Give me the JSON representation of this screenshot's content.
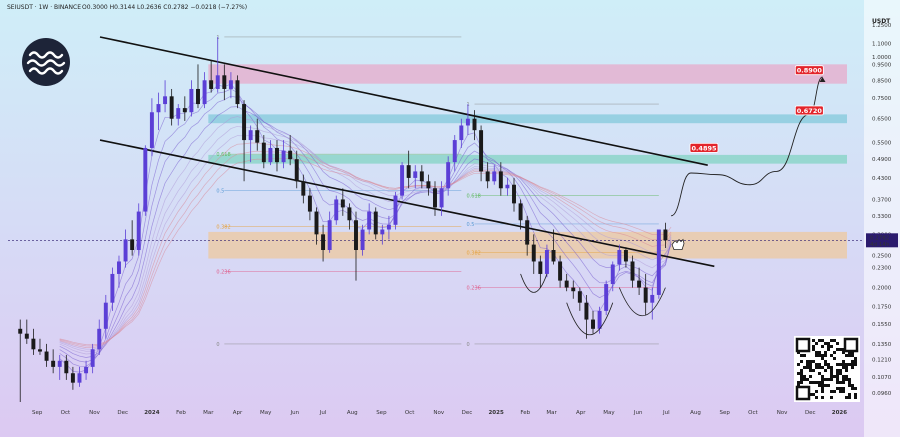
{
  "header": {
    "symbol_line": "SEIUSDT · 1W · BINANCE",
    "ohlc": "O0.3000  H0.3144  L0.2636  C0.2782  −0.0218 (−7.27%)"
  },
  "colors": {
    "up": "#5b3fd6",
    "down": "#1a1a1a",
    "resistance_zone": "#e9a6c8",
    "cyan_zone": "#7ec8d8",
    "green_zone": "#7ed3c0",
    "support_zone": "#f0c898",
    "target_label": "#e3242b",
    "last_price": "#2b1b6e"
  },
  "price_axis": {
    "currency": "USDT",
    "ticks": [
      "1.2500",
      "1.1000",
      "1.0000",
      "0.9500",
      "0.8500",
      "0.7500",
      "0.6500",
      "0.5500",
      "0.4900",
      "0.4300",
      "0.3700",
      "0.3300",
      "0.2900",
      "0.2500",
      "0.2300",
      "0.2000",
      "0.1750",
      "0.1550",
      "0.1350",
      "0.1210",
      "0.1070",
      "0.0960"
    ],
    "last_price": "0.2782",
    "countdown": "4d 14h"
  },
  "time_axis": {
    "labels": [
      "Sep",
      "Oct",
      "Nov",
      "Dec",
      "2024",
      "Feb",
      "Mar",
      "Apr",
      "May",
      "Jun",
      "Jul",
      "Aug",
      "Sep",
      "Oct",
      "Nov",
      "Dec",
      "2025",
      "Feb",
      "Mar",
      "Apr",
      "May",
      "Jun",
      "Jul",
      "Aug",
      "Sep",
      "Oct",
      "Nov",
      "Dec",
      "2026"
    ]
  },
  "fib_labels": {
    "left": [
      "1",
      "0.618",
      "0.5",
      "0.382",
      "0.236",
      "0"
    ],
    "right": [
      "1",
      "0.618",
      "0.5",
      "0.382",
      "0.236",
      "0"
    ]
  },
  "targets": [
    "0.4895",
    "0.6720",
    "0.8900"
  ],
  "chart_data": {
    "type": "candlestick",
    "symbol": "SEIUSDT",
    "exchange": "BINANCE",
    "interval": "1W",
    "y_scale": "log",
    "ylim": [
      0.09,
      1.35
    ],
    "last": {
      "open": 0.3,
      "high": 0.3144,
      "low": 0.2636,
      "close": 0.2782,
      "change": -0.0218,
      "change_pct": -7.27
    },
    "targets": [
      0.4895,
      0.672,
      0.89
    ],
    "zones": [
      {
        "name": "resistance",
        "low": 0.83,
        "high": 0.95
      },
      {
        "name": "cyan",
        "low": 0.63,
        "high": 0.67
      },
      {
        "name": "green",
        "low": 0.475,
        "high": 0.505
      },
      {
        "name": "support",
        "low": 0.245,
        "high": 0.295
      }
    ],
    "candles": [
      {
        "date": "2023-08-14",
        "o": 0.15,
        "h": 0.16,
        "l": 0.09,
        "c": 0.145
      },
      {
        "date": "2023-08-21",
        "o": 0.145,
        "h": 0.16,
        "l": 0.135,
        "c": 0.14
      },
      {
        "date": "2023-08-28",
        "o": 0.14,
        "h": 0.15,
        "l": 0.125,
        "c": 0.13
      },
      {
        "date": "2023-09-04",
        "o": 0.13,
        "h": 0.14,
        "l": 0.125,
        "c": 0.128
      },
      {
        "date": "2023-09-11",
        "o": 0.128,
        "h": 0.135,
        "l": 0.115,
        "c": 0.12
      },
      {
        "date": "2023-09-18",
        "o": 0.12,
        "h": 0.13,
        "l": 0.11,
        "c": 0.115
      },
      {
        "date": "2023-09-25",
        "o": 0.115,
        "h": 0.125,
        "l": 0.105,
        "c": 0.12
      },
      {
        "date": "2023-10-02",
        "o": 0.12,
        "h": 0.125,
        "l": 0.105,
        "c": 0.11
      },
      {
        "date": "2023-10-09",
        "o": 0.11,
        "h": 0.115,
        "l": 0.098,
        "c": 0.103
      },
      {
        "date": "2023-10-16",
        "o": 0.103,
        "h": 0.115,
        "l": 0.1,
        "c": 0.11
      },
      {
        "date": "2023-10-23",
        "o": 0.11,
        "h": 0.12,
        "l": 0.105,
        "c": 0.115
      },
      {
        "date": "2023-10-30",
        "o": 0.115,
        "h": 0.135,
        "l": 0.11,
        "c": 0.13
      },
      {
        "date": "2023-11-06",
        "o": 0.13,
        "h": 0.16,
        "l": 0.125,
        "c": 0.15
      },
      {
        "date": "2023-11-13",
        "o": 0.15,
        "h": 0.19,
        "l": 0.14,
        "c": 0.18
      },
      {
        "date": "2023-11-20",
        "o": 0.18,
        "h": 0.23,
        "l": 0.17,
        "c": 0.22
      },
      {
        "date": "2023-11-27",
        "o": 0.22,
        "h": 0.25,
        "l": 0.2,
        "c": 0.24
      },
      {
        "date": "2023-12-04",
        "o": 0.24,
        "h": 0.3,
        "l": 0.23,
        "c": 0.28
      },
      {
        "date": "2023-12-11",
        "o": 0.28,
        "h": 0.32,
        "l": 0.25,
        "c": 0.26
      },
      {
        "date": "2023-12-18",
        "o": 0.26,
        "h": 0.36,
        "l": 0.25,
        "c": 0.34
      },
      {
        "date": "2023-12-25",
        "o": 0.34,
        "h": 0.54,
        "l": 0.33,
        "c": 0.53
      },
      {
        "date": "2024-01-01",
        "o": 0.53,
        "h": 0.75,
        "l": 0.5,
        "c": 0.68
      },
      {
        "date": "2024-01-08",
        "o": 0.68,
        "h": 0.78,
        "l": 0.6,
        "c": 0.72
      },
      {
        "date": "2024-01-15",
        "o": 0.72,
        "h": 0.85,
        "l": 0.68,
        "c": 0.76
      },
      {
        "date": "2024-01-22",
        "o": 0.76,
        "h": 0.8,
        "l": 0.62,
        "c": 0.65
      },
      {
        "date": "2024-01-29",
        "o": 0.65,
        "h": 0.72,
        "l": 0.62,
        "c": 0.7
      },
      {
        "date": "2024-02-05",
        "o": 0.7,
        "h": 0.76,
        "l": 0.64,
        "c": 0.68
      },
      {
        "date": "2024-02-12",
        "o": 0.68,
        "h": 0.85,
        "l": 0.66,
        "c": 0.8
      },
      {
        "date": "2024-02-19",
        "o": 0.8,
        "h": 0.95,
        "l": 0.7,
        "c": 0.72
      },
      {
        "date": "2024-02-26",
        "o": 0.72,
        "h": 0.9,
        "l": 0.7,
        "c": 0.85
      },
      {
        "date": "2024-03-04",
        "o": 0.85,
        "h": 0.98,
        "l": 0.78,
        "c": 0.8
      },
      {
        "date": "2024-03-11",
        "o": 0.8,
        "h": 1.15,
        "l": 0.78,
        "c": 0.88
      },
      {
        "date": "2024-03-18",
        "o": 0.88,
        "h": 0.95,
        "l": 0.74,
        "c": 0.8
      },
      {
        "date": "2024-03-25",
        "o": 0.8,
        "h": 0.9,
        "l": 0.75,
        "c": 0.85
      },
      {
        "date": "2024-04-01",
        "o": 0.85,
        "h": 0.88,
        "l": 0.7,
        "c": 0.72
      },
      {
        "date": "2024-04-08",
        "o": 0.72,
        "h": 0.74,
        "l": 0.42,
        "c": 0.56
      },
      {
        "date": "2024-04-15",
        "o": 0.56,
        "h": 0.62,
        "l": 0.48,
        "c": 0.6
      },
      {
        "date": "2024-04-22",
        "o": 0.6,
        "h": 0.65,
        "l": 0.52,
        "c": 0.55
      },
      {
        "date": "2024-04-29",
        "o": 0.55,
        "h": 0.58,
        "l": 0.46,
        "c": 0.48
      },
      {
        "date": "2024-05-06",
        "o": 0.48,
        "h": 0.56,
        "l": 0.47,
        "c": 0.53
      },
      {
        "date": "2024-05-13",
        "o": 0.53,
        "h": 0.56,
        "l": 0.45,
        "c": 0.48
      },
      {
        "date": "2024-05-20",
        "o": 0.48,
        "h": 0.56,
        "l": 0.46,
        "c": 0.52
      },
      {
        "date": "2024-05-27",
        "o": 0.52,
        "h": 0.58,
        "l": 0.47,
        "c": 0.49
      },
      {
        "date": "2024-06-03",
        "o": 0.49,
        "h": 0.52,
        "l": 0.4,
        "c": 0.42
      },
      {
        "date": "2024-06-10",
        "o": 0.42,
        "h": 0.44,
        "l": 0.36,
        "c": 0.38
      },
      {
        "date": "2024-06-17",
        "o": 0.38,
        "h": 0.4,
        "l": 0.32,
        "c": 0.34
      },
      {
        "date": "2024-06-24",
        "o": 0.34,
        "h": 0.35,
        "l": 0.27,
        "c": 0.29
      },
      {
        "date": "2024-07-01",
        "o": 0.29,
        "h": 0.31,
        "l": 0.24,
        "c": 0.26
      },
      {
        "date": "2024-07-08",
        "o": 0.26,
        "h": 0.34,
        "l": 0.255,
        "c": 0.32
      },
      {
        "date": "2024-07-15",
        "o": 0.32,
        "h": 0.38,
        "l": 0.31,
        "c": 0.37
      },
      {
        "date": "2024-07-22",
        "o": 0.37,
        "h": 0.4,
        "l": 0.33,
        "c": 0.35
      },
      {
        "date": "2024-07-29",
        "o": 0.35,
        "h": 0.36,
        "l": 0.3,
        "c": 0.32
      },
      {
        "date": "2024-08-05",
        "o": 0.32,
        "h": 0.34,
        "l": 0.21,
        "c": 0.26
      },
      {
        "date": "2024-08-12",
        "o": 0.26,
        "h": 0.31,
        "l": 0.25,
        "c": 0.3
      },
      {
        "date": "2024-08-19",
        "o": 0.3,
        "h": 0.36,
        "l": 0.29,
        "c": 0.34
      },
      {
        "date": "2024-08-26",
        "o": 0.34,
        "h": 0.35,
        "l": 0.28,
        "c": 0.29
      },
      {
        "date": "2024-09-02",
        "o": 0.29,
        "h": 0.31,
        "l": 0.27,
        "c": 0.3
      },
      {
        "date": "2024-09-09",
        "o": 0.3,
        "h": 0.33,
        "l": 0.28,
        "c": 0.31
      },
      {
        "date": "2024-09-16",
        "o": 0.31,
        "h": 0.39,
        "l": 0.3,
        "c": 0.38
      },
      {
        "date": "2024-09-23",
        "o": 0.38,
        "h": 0.48,
        "l": 0.37,
        "c": 0.47
      },
      {
        "date": "2024-09-30",
        "o": 0.47,
        "h": 0.52,
        "l": 0.4,
        "c": 0.43
      },
      {
        "date": "2024-10-07",
        "o": 0.43,
        "h": 0.47,
        "l": 0.4,
        "c": 0.45
      },
      {
        "date": "2024-10-14",
        "o": 0.45,
        "h": 0.47,
        "l": 0.4,
        "c": 0.42
      },
      {
        "date": "2024-10-21",
        "o": 0.42,
        "h": 0.44,
        "l": 0.38,
        "c": 0.4
      },
      {
        "date": "2024-10-28",
        "o": 0.4,
        "h": 0.42,
        "l": 0.33,
        "c": 0.35
      },
      {
        "date": "2024-11-04",
        "o": 0.35,
        "h": 0.42,
        "l": 0.33,
        "c": 0.4
      },
      {
        "date": "2024-11-11",
        "o": 0.4,
        "h": 0.5,
        "l": 0.38,
        "c": 0.48
      },
      {
        "date": "2024-11-18",
        "o": 0.48,
        "h": 0.58,
        "l": 0.45,
        "c": 0.56
      },
      {
        "date": "2024-11-25",
        "o": 0.56,
        "h": 0.65,
        "l": 0.53,
        "c": 0.62
      },
      {
        "date": "2024-12-02",
        "o": 0.62,
        "h": 0.72,
        "l": 0.58,
        "c": 0.65
      },
      {
        "date": "2024-12-09",
        "o": 0.65,
        "h": 0.69,
        "l": 0.56,
        "c": 0.6
      },
      {
        "date": "2024-12-16",
        "o": 0.6,
        "h": 0.62,
        "l": 0.42,
        "c": 0.45
      },
      {
        "date": "2024-12-23",
        "o": 0.45,
        "h": 0.48,
        "l": 0.4,
        "c": 0.42
      },
      {
        "date": "2024-12-30",
        "o": 0.42,
        "h": 0.47,
        "l": 0.41,
        "c": 0.45
      },
      {
        "date": "2025-01-06",
        "o": 0.45,
        "h": 0.48,
        "l": 0.38,
        "c": 0.4
      },
      {
        "date": "2025-01-13",
        "o": 0.4,
        "h": 0.43,
        "l": 0.38,
        "c": 0.41
      },
      {
        "date": "2025-01-20",
        "o": 0.41,
        "h": 0.43,
        "l": 0.34,
        "c": 0.36
      },
      {
        "date": "2025-01-27",
        "o": 0.36,
        "h": 0.37,
        "l": 0.3,
        "c": 0.32
      },
      {
        "date": "2025-02-03",
        "o": 0.32,
        "h": 0.33,
        "l": 0.25,
        "c": 0.27
      },
      {
        "date": "2025-02-10",
        "o": 0.27,
        "h": 0.29,
        "l": 0.22,
        "c": 0.24
      },
      {
        "date": "2025-02-17",
        "o": 0.24,
        "h": 0.25,
        "l": 0.2,
        "c": 0.22
      },
      {
        "date": "2025-02-24",
        "o": 0.22,
        "h": 0.27,
        "l": 0.215,
        "c": 0.26
      },
      {
        "date": "2025-03-03",
        "o": 0.26,
        "h": 0.3,
        "l": 0.235,
        "c": 0.24
      },
      {
        "date": "2025-03-10",
        "o": 0.24,
        "h": 0.25,
        "l": 0.2,
        "c": 0.21
      },
      {
        "date": "2025-03-17",
        "o": 0.21,
        "h": 0.22,
        "l": 0.195,
        "c": 0.2
      },
      {
        "date": "2025-03-24",
        "o": 0.2,
        "h": 0.21,
        "l": 0.185,
        "c": 0.195
      },
      {
        "date": "2025-03-31",
        "o": 0.195,
        "h": 0.2,
        "l": 0.17,
        "c": 0.18
      },
      {
        "date": "2025-04-07",
        "o": 0.18,
        "h": 0.19,
        "l": 0.14,
        "c": 0.16
      },
      {
        "date": "2025-04-14",
        "o": 0.16,
        "h": 0.17,
        "l": 0.145,
        "c": 0.15
      },
      {
        "date": "2025-04-21",
        "o": 0.15,
        "h": 0.175,
        "l": 0.145,
        "c": 0.17
      },
      {
        "date": "2025-04-28",
        "o": 0.17,
        "h": 0.21,
        "l": 0.165,
        "c": 0.205
      },
      {
        "date": "2025-05-05",
        "o": 0.205,
        "h": 0.24,
        "l": 0.195,
        "c": 0.235
      },
      {
        "date": "2025-05-12",
        "o": 0.235,
        "h": 0.27,
        "l": 0.225,
        "c": 0.26
      },
      {
        "date": "2025-05-19",
        "o": 0.26,
        "h": 0.265,
        "l": 0.23,
        "c": 0.24
      },
      {
        "date": "2025-05-26",
        "o": 0.24,
        "h": 0.25,
        "l": 0.2,
        "c": 0.21
      },
      {
        "date": "2025-06-02",
        "o": 0.21,
        "h": 0.23,
        "l": 0.19,
        "c": 0.2
      },
      {
        "date": "2025-06-09",
        "o": 0.2,
        "h": 0.22,
        "l": 0.165,
        "c": 0.18
      },
      {
        "date": "2025-06-16",
        "o": 0.18,
        "h": 0.2,
        "l": 0.16,
        "c": 0.19
      },
      {
        "date": "2025-06-23",
        "o": 0.19,
        "h": 0.3,
        "l": 0.185,
        "c": 0.3
      },
      {
        "date": "2025-06-30",
        "o": 0.3,
        "h": 0.3144,
        "l": 0.2636,
        "c": 0.2782
      }
    ]
  }
}
